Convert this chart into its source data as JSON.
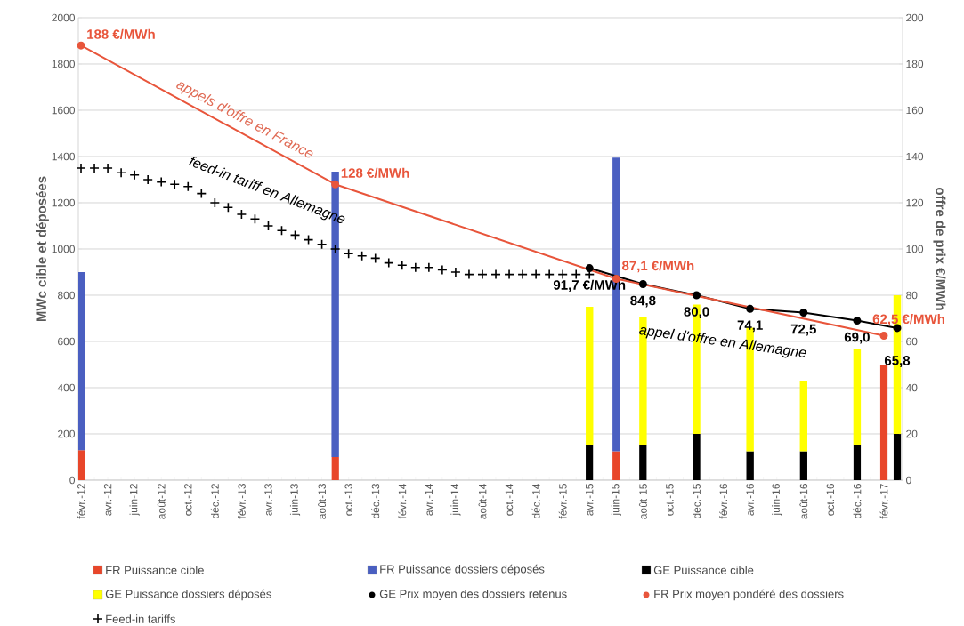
{
  "chart_data": {
    "type": "bar",
    "stacked": true,
    "grid": "y",
    "legend": "bottom",
    "ylabel": "MWc cible et déposées",
    "y2label": "offre de prix €/MWh",
    "ylim": [
      0,
      2000
    ],
    "yticks": [
      0,
      200,
      400,
      600,
      800,
      1000,
      1200,
      1400,
      1600,
      1800,
      2000
    ],
    "y2lim": [
      0,
      200
    ],
    "y2ticks": [
      0,
      20,
      40,
      60,
      80,
      100,
      120,
      140,
      160,
      180,
      200
    ],
    "categories": [
      "févr.-12",
      null,
      "avr.-12",
      null,
      "juin-12",
      null,
      "août-12",
      null,
      "oct.-12",
      null,
      "déc.-12",
      null,
      "févr.-13",
      null,
      "avr.-13",
      null,
      "juin-13",
      null,
      "août-13",
      null,
      "oct.-13",
      null,
      "déc.-13",
      null,
      "févr.-14",
      null,
      "avr.-14",
      null,
      "juin-14",
      null,
      "août-14",
      null,
      "oct.-14",
      null,
      "déc.-14",
      null,
      "févr.-15",
      null,
      "avr.-15",
      null,
      "juin-15",
      null,
      "août-15",
      null,
      "oct.-15",
      null,
      "déc.-15",
      null,
      "févr.-16",
      null,
      "avr.-16",
      null,
      "juin-16",
      null,
      "août-16",
      null,
      "oct.-16",
      null,
      "déc.-16",
      null,
      "févr.-17",
      null
    ],
    "annotations": [
      "appels d'offre en France",
      "feed-in tariff en Allemagne",
      "appel d'offre en Allemagne"
    ],
    "series": [
      {
        "name": "FR Puissance cible",
        "color": "#e8462a",
        "values": [
          130,
          null,
          null,
          null,
          null,
          null,
          null,
          null,
          null,
          null,
          null,
          null,
          null,
          null,
          null,
          null,
          null,
          null,
          null,
          100,
          null,
          null,
          null,
          null,
          null,
          null,
          null,
          null,
          null,
          null,
          null,
          null,
          null,
          null,
          null,
          null,
          null,
          null,
          null,
          null,
          125,
          null,
          null,
          null,
          null,
          null,
          null,
          null,
          null,
          null,
          null,
          null,
          null,
          null,
          null,
          null,
          null,
          null,
          null,
          null,
          500,
          null
        ]
      },
      {
        "name": "FR Puissance dossiers déposés",
        "color": "#4a5fc1",
        "values": [
          770,
          null,
          null,
          null,
          null,
          null,
          null,
          null,
          null,
          null,
          null,
          null,
          null,
          null,
          null,
          null,
          null,
          null,
          null,
          1235,
          null,
          null,
          null,
          null,
          null,
          null,
          null,
          null,
          null,
          null,
          null,
          null,
          null,
          null,
          null,
          null,
          null,
          null,
          null,
          null,
          1270,
          null,
          null,
          null,
          null,
          null,
          null,
          null,
          null,
          null,
          null,
          null,
          null,
          null,
          null,
          null,
          null,
          null,
          null,
          null,
          null,
          null
        ]
      },
      {
        "name": "GE Puissance cible",
        "color": "#000000",
        "values": [
          null,
          null,
          null,
          null,
          null,
          null,
          null,
          null,
          null,
          null,
          null,
          null,
          null,
          null,
          null,
          null,
          null,
          null,
          null,
          null,
          null,
          null,
          null,
          null,
          null,
          null,
          null,
          null,
          null,
          null,
          null,
          null,
          null,
          null,
          null,
          null,
          null,
          null,
          150,
          null,
          null,
          null,
          150,
          null,
          null,
          null,
          200,
          null,
          null,
          null,
          125,
          null,
          null,
          null,
          125,
          null,
          null,
          null,
          150,
          null,
          null,
          200
        ]
      },
      {
        "name": "GE Puissance dossiers déposés",
        "color": "#ffff00",
        "values": [
          null,
          null,
          null,
          null,
          null,
          null,
          null,
          null,
          null,
          null,
          null,
          null,
          null,
          null,
          null,
          null,
          null,
          null,
          null,
          null,
          null,
          null,
          null,
          null,
          null,
          null,
          null,
          null,
          null,
          null,
          null,
          null,
          null,
          null,
          null,
          null,
          null,
          null,
          600,
          null,
          null,
          null,
          555,
          null,
          null,
          null,
          560,
          null,
          null,
          null,
          535,
          null,
          null,
          null,
          305,
          null,
          null,
          null,
          415,
          null,
          null,
          600
        ]
      },
      {
        "name": "GE Prix moyen des dossiers retenus",
        "type": "line",
        "axis": "y2",
        "marker": "circle",
        "line_style": "solid",
        "color": "#000000",
        "values": [
          null,
          null,
          null,
          null,
          null,
          null,
          null,
          null,
          null,
          null,
          null,
          null,
          null,
          null,
          null,
          null,
          null,
          null,
          null,
          null,
          null,
          null,
          null,
          null,
          null,
          null,
          null,
          null,
          null,
          null,
          null,
          null,
          null,
          null,
          null,
          null,
          null,
          null,
          91.7,
          null,
          null,
          null,
          84.8,
          null,
          null,
          null,
          80.0,
          null,
          null,
          null,
          74.1,
          null,
          null,
          null,
          72.5,
          null,
          null,
          null,
          69.0,
          null,
          null,
          65.8
        ],
        "value_labels": [
          null,
          null,
          null,
          null,
          null,
          null,
          null,
          null,
          null,
          null,
          null,
          null,
          null,
          null,
          null,
          null,
          null,
          null,
          null,
          null,
          null,
          null,
          null,
          null,
          null,
          null,
          null,
          null,
          null,
          null,
          null,
          null,
          null,
          null,
          null,
          null,
          null,
          null,
          "91,7 €/MWh",
          null,
          null,
          null,
          "84,8",
          null,
          null,
          null,
          "80,0",
          null,
          null,
          null,
          "74,1",
          null,
          null,
          null,
          "72,5",
          null,
          null,
          null,
          "69,0",
          null,
          null,
          "65,8"
        ]
      },
      {
        "name": "FR Prix moyen pondéré des dossiers",
        "type": "line",
        "axis": "y2",
        "marker": "circle",
        "line_style": "solid",
        "color": "#e8553b",
        "values": [
          188,
          null,
          null,
          null,
          null,
          null,
          null,
          null,
          null,
          null,
          null,
          null,
          null,
          null,
          null,
          null,
          null,
          null,
          null,
          128,
          null,
          null,
          null,
          null,
          null,
          null,
          null,
          null,
          null,
          null,
          null,
          null,
          null,
          null,
          null,
          null,
          null,
          null,
          null,
          null,
          87.1,
          null,
          null,
          null,
          null,
          null,
          null,
          null,
          null,
          null,
          null,
          null,
          null,
          null,
          null,
          null,
          null,
          null,
          null,
          null,
          62.5,
          null
        ],
        "value_labels": [
          "188 €/MWh",
          null,
          null,
          null,
          null,
          null,
          null,
          null,
          null,
          null,
          null,
          null,
          null,
          null,
          null,
          null,
          null,
          null,
          null,
          "128 €/MWh",
          null,
          null,
          null,
          null,
          null,
          null,
          null,
          null,
          null,
          null,
          null,
          null,
          null,
          null,
          null,
          null,
          null,
          null,
          null,
          null,
          "87,1 €/MWh",
          null,
          null,
          null,
          null,
          null,
          null,
          null,
          null,
          null,
          null,
          null,
          null,
          null,
          null,
          null,
          null,
          null,
          null,
          null,
          "62,5 €/MWh",
          null
        ]
      },
      {
        "name": "Feed-in tariffs",
        "type": "scatter",
        "axis": "y2",
        "marker": "cross",
        "color": "#000000",
        "values": [
          135,
          135,
          135,
          133,
          132,
          130,
          129,
          128,
          127,
          124,
          120,
          118,
          115,
          113,
          110,
          108,
          106,
          104,
          102,
          100,
          98,
          97,
          96,
          94,
          93,
          92,
          92,
          91,
          90,
          89,
          89,
          89,
          89,
          89,
          89,
          89,
          89,
          89,
          89,
          null,
          null,
          null,
          null,
          null,
          null,
          null,
          null,
          null,
          null,
          null,
          null,
          null,
          null,
          null,
          null,
          null,
          null,
          null,
          null,
          null,
          null,
          null
        ]
      }
    ]
  }
}
